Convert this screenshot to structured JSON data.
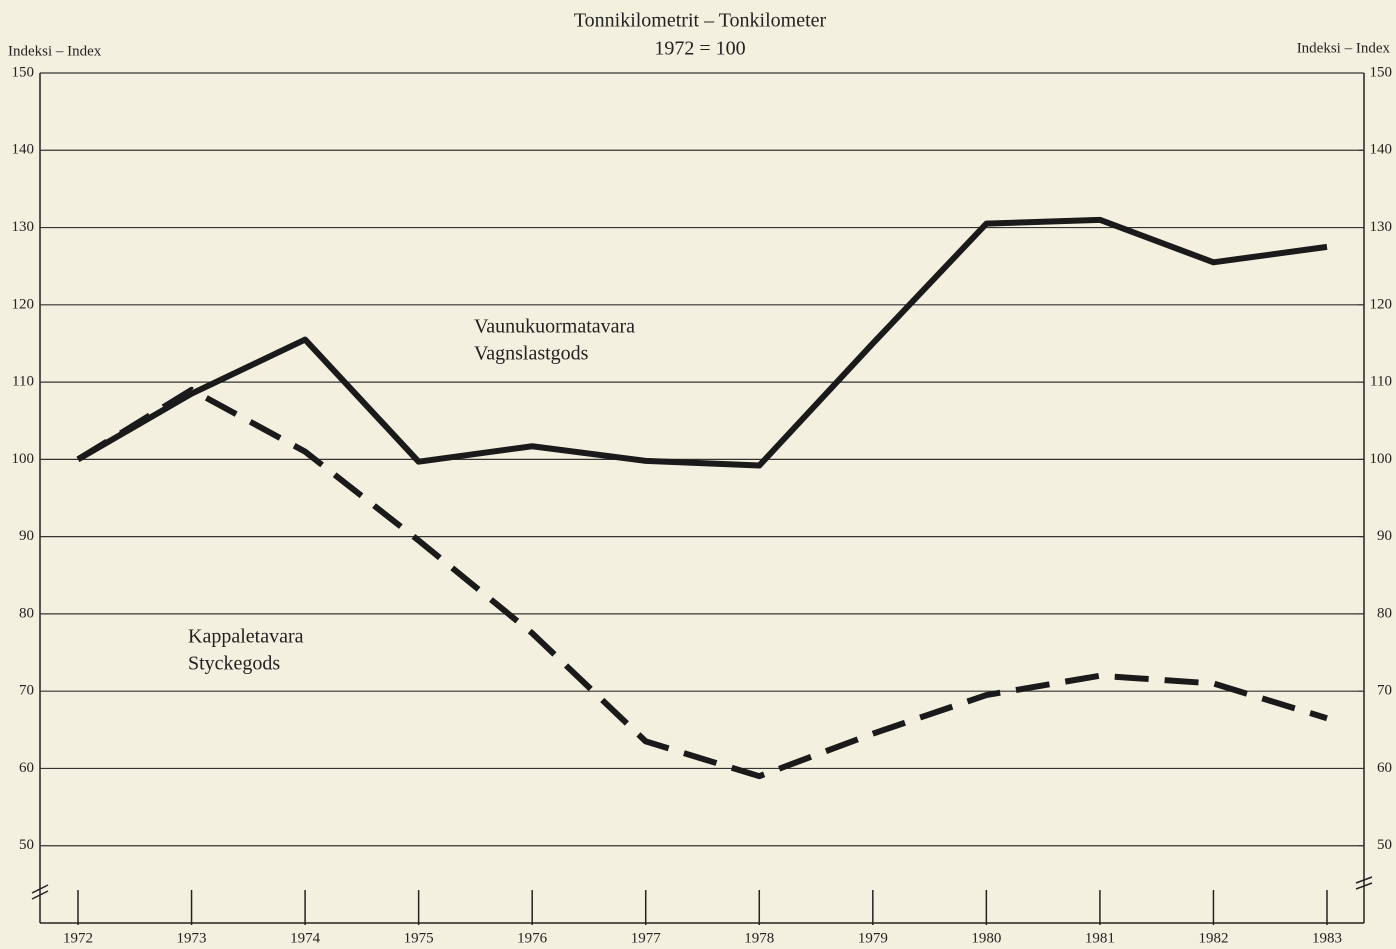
{
  "chart_data": {
    "type": "line",
    "title": "Tonnikilometrit – Tonkilometer",
    "subtitle": "1972 = 100",
    "ylabel": "Indeksi – Index",
    "y2label": "Indeksi – Index",
    "categories": [
      "1972",
      "1973",
      "1974",
      "1975",
      "1976",
      "1977",
      "1978",
      "1979",
      "1980",
      "1981",
      "1982",
      "1983"
    ],
    "series": [
      {
        "name": [
          "Vaunukuormatavara",
          "Vagnslastgods"
        ],
        "color": "#1a1a1a",
        "dash": false,
        "values": [
          100,
          108.5,
          115.5,
          99.7,
          101.7,
          99.8,
          99.2,
          115,
          130.5,
          131,
          125.5,
          127.5
        ]
      },
      {
        "name": [
          "Kappaletavara",
          "Styckegods"
        ],
        "color": "#1a1a1a",
        "dash": true,
        "values": [
          100,
          109,
          101,
          89.5,
          77.5,
          63.5,
          59,
          64.5,
          69.5,
          72,
          71,
          66.5
        ]
      }
    ],
    "ylim": [
      40,
      150
    ],
    "yticks": [
      50,
      60,
      70,
      80,
      90,
      100,
      110,
      120,
      130,
      140,
      150
    ],
    "y2lim": [
      40,
      150
    ],
    "y2ticks": [
      50,
      60,
      70,
      80,
      90,
      100,
      110,
      120,
      130,
      140,
      150
    ],
    "grid": true
  }
}
